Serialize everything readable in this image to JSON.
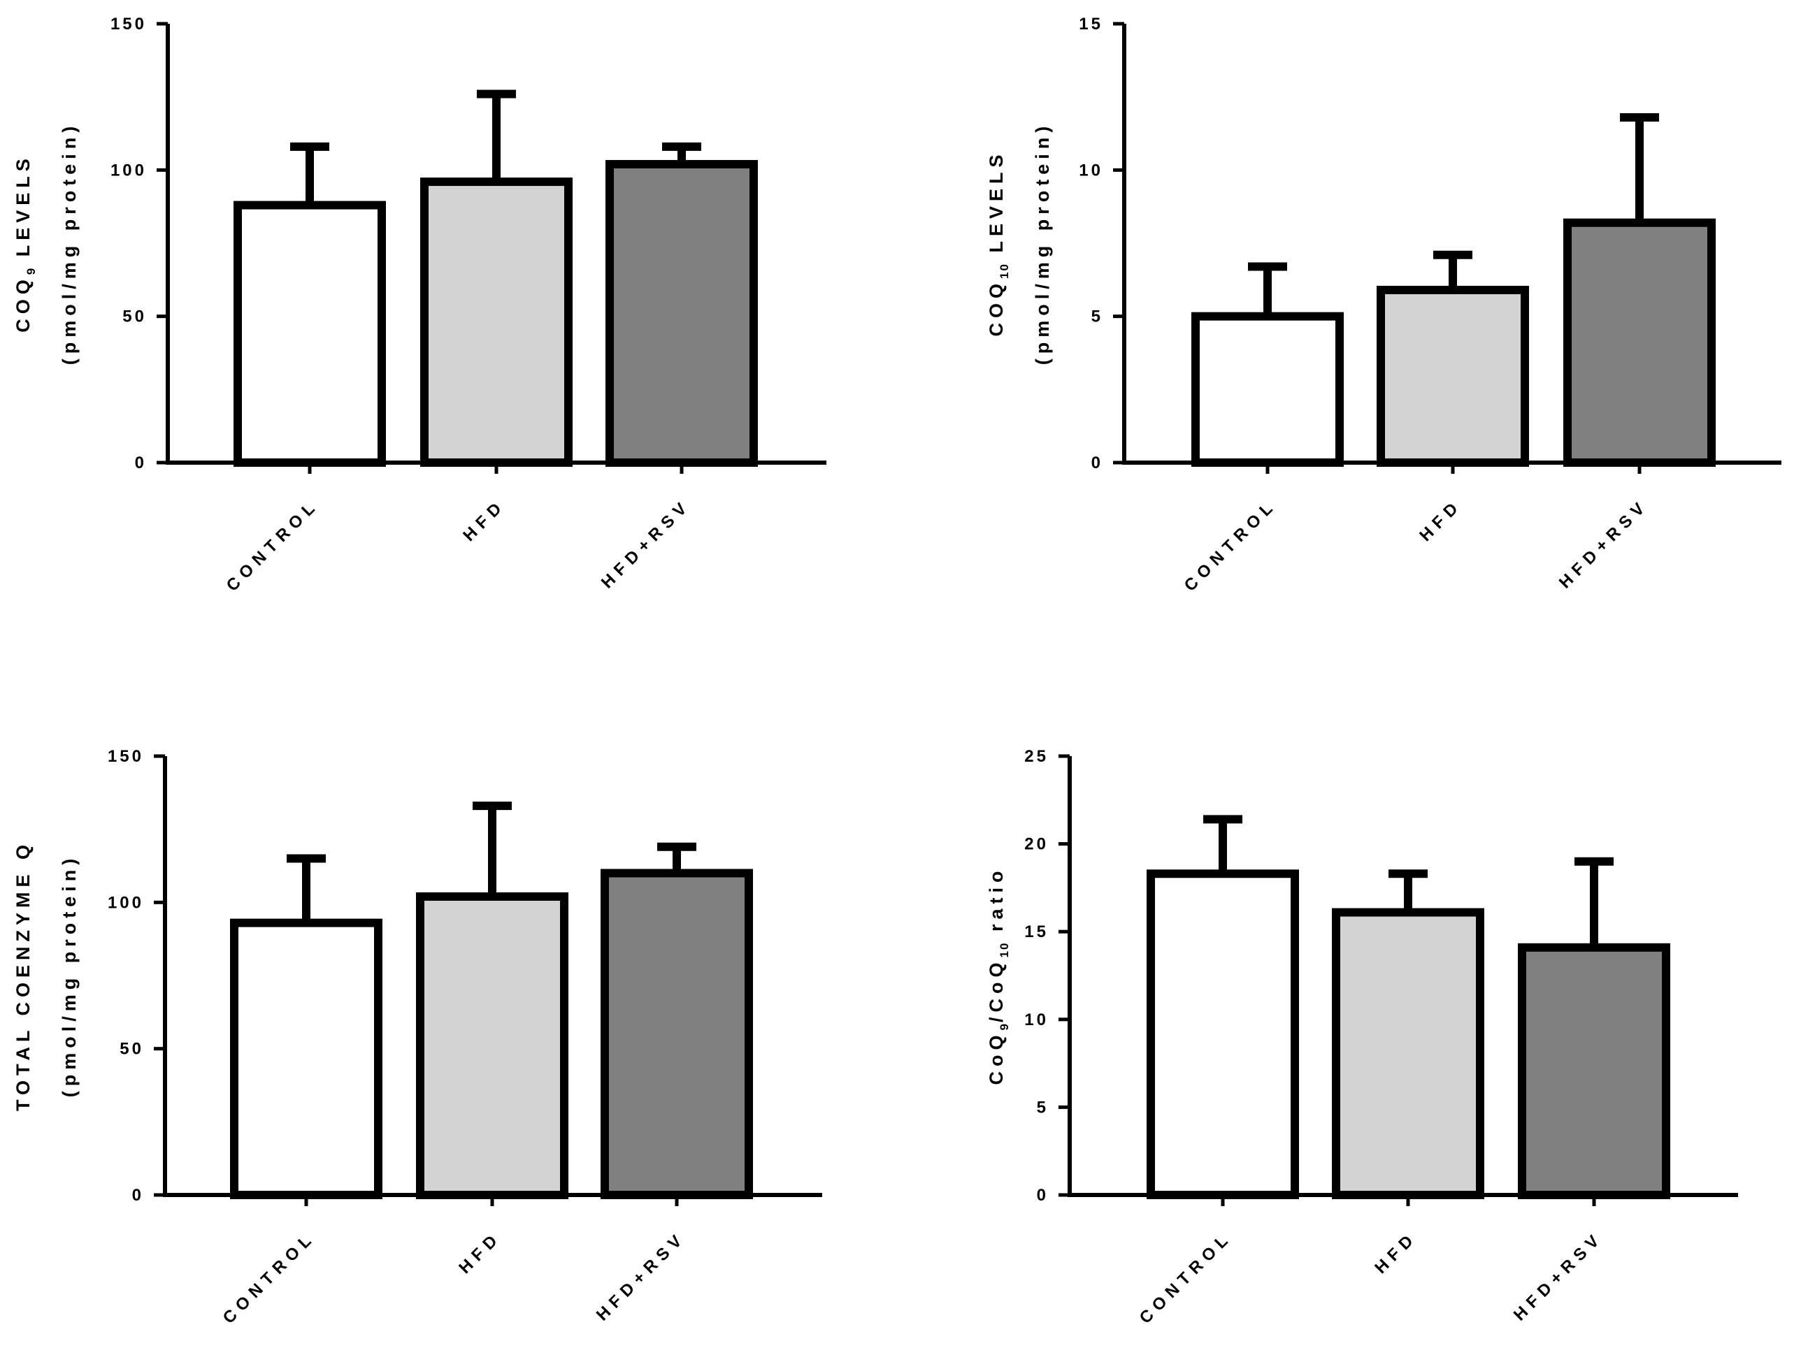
{
  "colors": {
    "control": "#ffffff",
    "hfd": "#d3d3d3",
    "hfd_rsv": "#808080",
    "stroke": "#000000"
  },
  "chart_data": [
    {
      "type": "bar",
      "categories": [
        "CONTROL",
        "HFD",
        "HFD+RSV"
      ],
      "values": [
        88,
        96,
        102
      ],
      "errors": [
        20,
        30,
        6
      ],
      "ylim": [
        0,
        150
      ],
      "yticks": [
        "0",
        "50",
        "100",
        "150"
      ],
      "ylabel_line1_parts": [
        "COQ",
        "9",
        " LEVELS"
      ],
      "ylabel_line2": "(pmol/mg protein)",
      "xlabel": ""
    },
    {
      "type": "bar",
      "categories": [
        "CONTROL",
        "HFD",
        "HFD+RSV"
      ],
      "values": [
        5.0,
        5.9,
        8.2
      ],
      "errors": [
        1.7,
        1.2,
        3.6
      ],
      "ylim": [
        0,
        15
      ],
      "yticks": [
        "0",
        "5",
        "10",
        "15"
      ],
      "ylabel_line1_parts": [
        "COQ",
        "10",
        " LEVELS"
      ],
      "ylabel_line2": "(pmol/mg protein)",
      "xlabel": ""
    },
    {
      "type": "bar",
      "categories": [
        "CONTROL",
        "HFD",
        "HFD+RSV"
      ],
      "values": [
        93,
        102,
        110
      ],
      "errors": [
        22,
        31,
        9
      ],
      "ylim": [
        0,
        150
      ],
      "yticks": [
        "0",
        "50",
        "100",
        "150"
      ],
      "ylabel_line1_parts": [
        "TOTAL COENZYME Q"
      ],
      "ylabel_line2": "(pmol/mg protein)",
      "xlabel": ""
    },
    {
      "type": "bar",
      "categories": [
        "CONTROL",
        "HFD",
        "HFD+RSV"
      ],
      "values": [
        18.3,
        16.1,
        14.1
      ],
      "errors": [
        3.1,
        2.2,
        4.9
      ],
      "ylim": [
        0,
        25
      ],
      "yticks": [
        "0",
        "5",
        "10",
        "15",
        "20",
        "25"
      ],
      "ylabel_line1_parts": [
        "CoQ",
        "9",
        "/CoQ",
        "10",
        " ratio"
      ],
      "ylabel_line2": "",
      "xlabel": ""
    }
  ]
}
